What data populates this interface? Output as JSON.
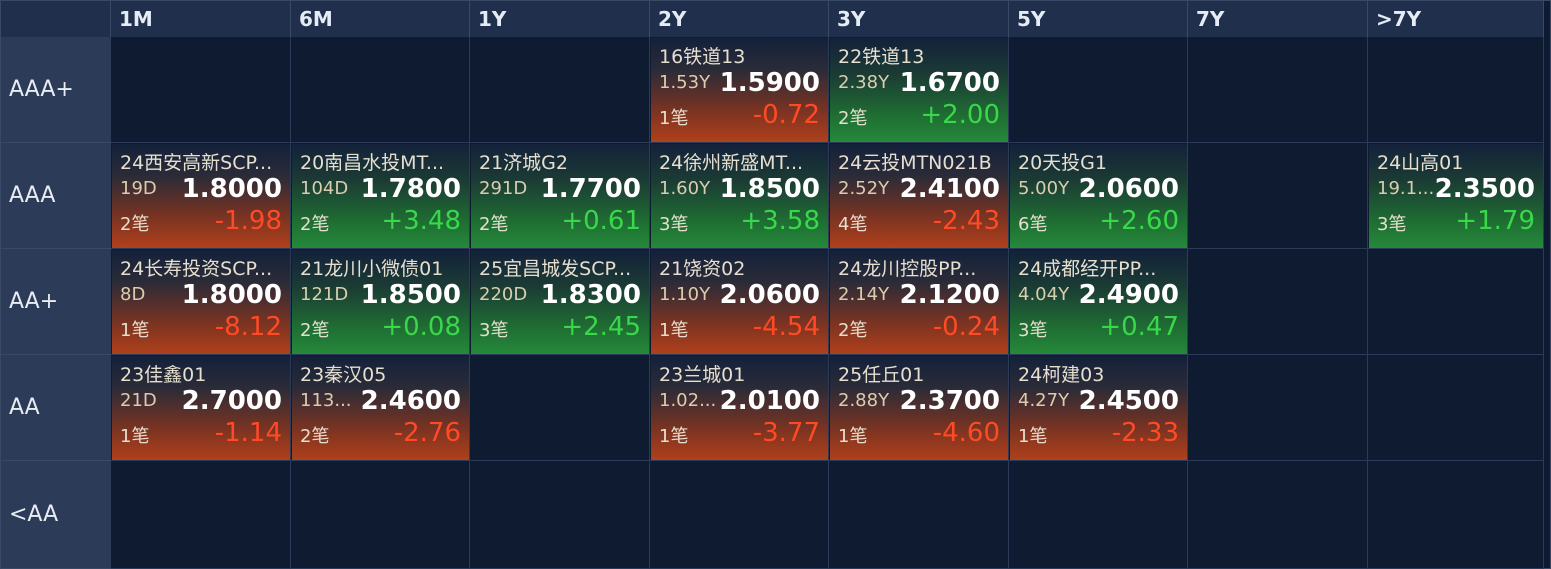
{
  "columns": [
    "1M",
    "6M",
    "1Y",
    "2Y",
    "3Y",
    "5Y",
    "7Y",
    ">7Y"
  ],
  "rows": [
    "AAA+",
    "AAA",
    "AA+",
    "AA",
    "<AA"
  ],
  "colors": {
    "up": "#38d84a",
    "down": "#ff4a25",
    "header_bg": "#1f2f4c",
    "row_label_bg": "#2b3b58",
    "grid_bg": "#0f1b30"
  },
  "cells": [
    {
      "row": 0,
      "col": 3,
      "name": "16铁道13",
      "term": "1.53Y",
      "yield": "1.5900",
      "count": "1笔",
      "change": "-0.72",
      "dir": "down"
    },
    {
      "row": 0,
      "col": 4,
      "name": "22铁道13",
      "term": "2.38Y",
      "yield": "1.6700",
      "count": "2笔",
      "change": "+2.00",
      "dir": "up"
    },
    {
      "row": 1,
      "col": 0,
      "name": "24西安高新SCP...",
      "term": "19D",
      "yield": "1.8000",
      "count": "2笔",
      "change": "-1.98",
      "dir": "down"
    },
    {
      "row": 1,
      "col": 1,
      "name": "20南昌水投MT...",
      "term": "104D",
      "yield": "1.7800",
      "count": "2笔",
      "change": "+3.48",
      "dir": "up"
    },
    {
      "row": 1,
      "col": 2,
      "name": "21济城G2",
      "term": "291D",
      "yield": "1.7700",
      "count": "2笔",
      "change": "+0.61",
      "dir": "up"
    },
    {
      "row": 1,
      "col": 3,
      "name": "24徐州新盛MT...",
      "term": "1.60Y",
      "yield": "1.8500",
      "count": "3笔",
      "change": "+3.58",
      "dir": "up"
    },
    {
      "row": 1,
      "col": 4,
      "name": "24云投MTN021B",
      "term": "2.52Y",
      "yield": "2.4100",
      "count": "4笔",
      "change": "-2.43",
      "dir": "down"
    },
    {
      "row": 1,
      "col": 5,
      "name": "20天投G1",
      "term": "5.00Y",
      "yield": "2.0600",
      "count": "6笔",
      "change": "+2.60",
      "dir": "up"
    },
    {
      "row": 1,
      "col": 7,
      "name": "24山高01",
      "term": "19.1...",
      "yield": "2.3500",
      "count": "3笔",
      "change": "+1.79",
      "dir": "up"
    },
    {
      "row": 2,
      "col": 0,
      "name": "24长寿投资SCP...",
      "term": "8D",
      "yield": "1.8000",
      "count": "1笔",
      "change": "-8.12",
      "dir": "down"
    },
    {
      "row": 2,
      "col": 1,
      "name": "21龙川小微债01",
      "term": "121D",
      "yield": "1.8500",
      "count": "2笔",
      "change": "+0.08",
      "dir": "up"
    },
    {
      "row": 2,
      "col": 2,
      "name": "25宜昌城发SCP...",
      "term": "220D",
      "yield": "1.8300",
      "count": "3笔",
      "change": "+2.45",
      "dir": "up"
    },
    {
      "row": 2,
      "col": 3,
      "name": "21饶资02",
      "term": "1.10Y",
      "yield": "2.0600",
      "count": "1笔",
      "change": "-4.54",
      "dir": "down"
    },
    {
      "row": 2,
      "col": 4,
      "name": "24龙川控股PP...",
      "term": "2.14Y",
      "yield": "2.1200",
      "count": "2笔",
      "change": "-0.24",
      "dir": "down"
    },
    {
      "row": 2,
      "col": 5,
      "name": "24成都经开PP...",
      "term": "4.04Y",
      "yield": "2.4900",
      "count": "3笔",
      "change": "+0.47",
      "dir": "up"
    },
    {
      "row": 3,
      "col": 0,
      "name": "23佳鑫01",
      "term": "21D",
      "yield": "2.7000",
      "count": "1笔",
      "change": "-1.14",
      "dir": "down"
    },
    {
      "row": 3,
      "col": 1,
      "name": "23秦汉05",
      "term": "113...",
      "yield": "2.4600",
      "count": "2笔",
      "change": "-2.76",
      "dir": "down"
    },
    {
      "row": 3,
      "col": 3,
      "name": "23兰城01",
      "term": "1.02...",
      "yield": "2.0100",
      "count": "1笔",
      "change": "-3.77",
      "dir": "down"
    },
    {
      "row": 3,
      "col": 4,
      "name": "25任丘01",
      "term": "2.88Y",
      "yield": "2.3700",
      "count": "1笔",
      "change": "-4.60",
      "dir": "down"
    },
    {
      "row": 3,
      "col": 5,
      "name": "24柯建03",
      "term": "4.27Y",
      "yield": "2.4500",
      "count": "1笔",
      "change": "-2.33",
      "dir": "down"
    }
  ]
}
